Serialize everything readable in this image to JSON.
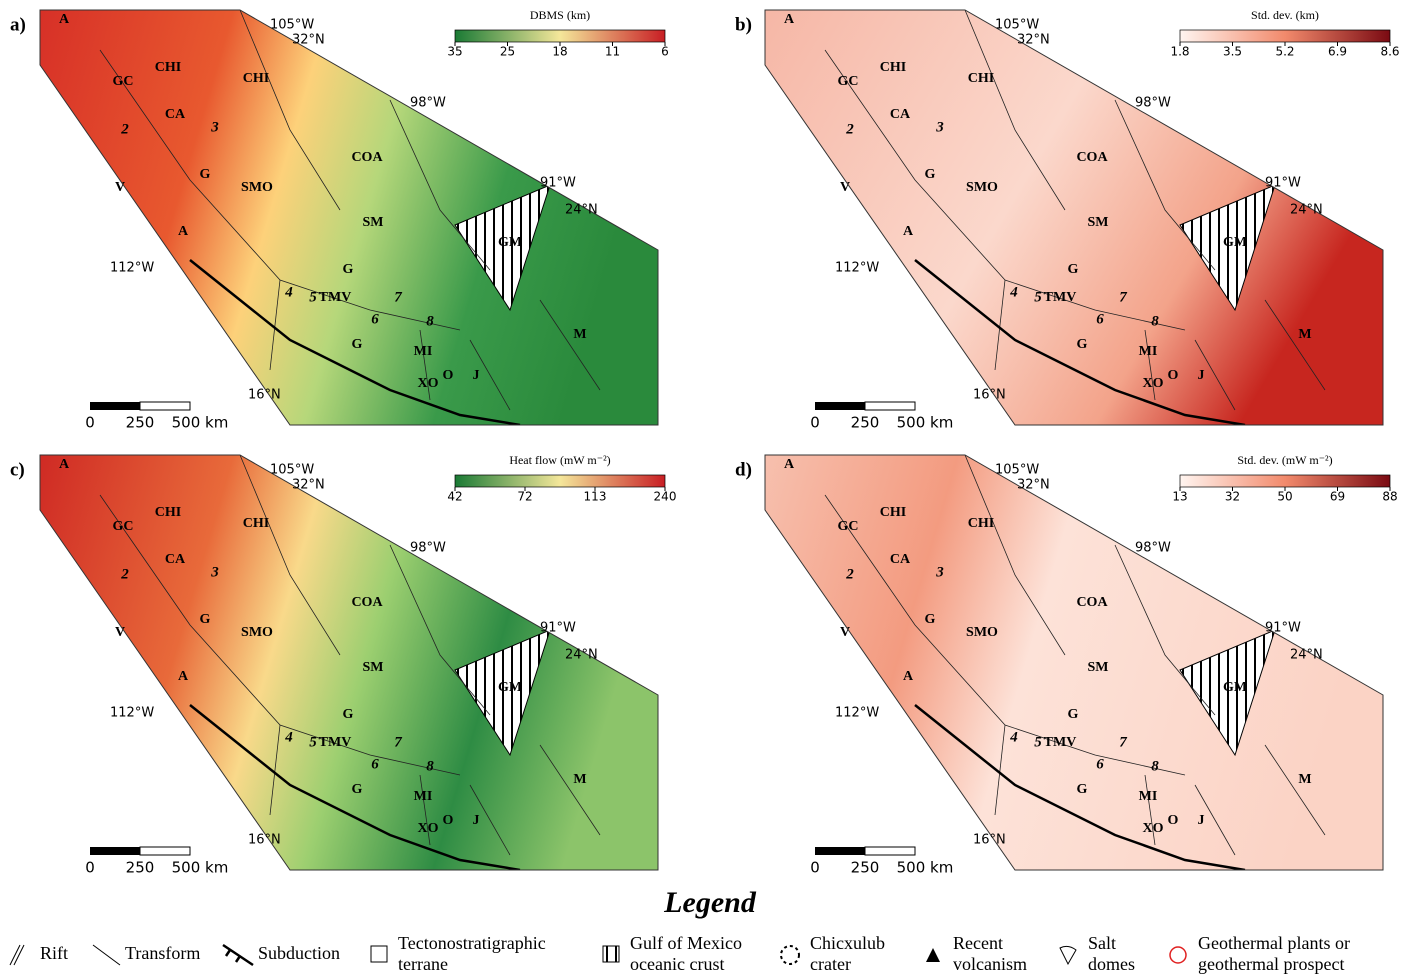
{
  "panels": [
    {
      "letter": "a)",
      "colorbar": {
        "title": "DBMS (km)",
        "ticks": [
          35,
          25,
          18,
          11,
          6
        ]
      }
    },
    {
      "letter": "b)",
      "colorbar": {
        "title": "Std. dev. (km)",
        "ticks": [
          1.8,
          3.5,
          5.2,
          6.9,
          8.6
        ]
      }
    },
    {
      "letter": "c)",
      "colorbar": {
        "title": "Heat flow (mW m⁻²)",
        "ticks": [
          42,
          72,
          113,
          240
        ]
      }
    },
    {
      "letter": "d)",
      "colorbar": {
        "title": "Std. dev. (mW m⁻²)",
        "ticks": [
          13,
          32,
          50,
          69,
          88
        ]
      }
    }
  ],
  "map_labels": [
    "A",
    "CHI",
    "CHI",
    "CA",
    "GC",
    "G",
    "SMO",
    "V",
    "A",
    "COA",
    "SM",
    "G",
    "GM",
    "TMV",
    "G",
    "MI",
    "O",
    "J",
    "XO",
    "M",
    "2",
    "3",
    "4",
    "5",
    "6",
    "7",
    "8"
  ],
  "coordinates": [
    "105°W",
    "32°N",
    "98°W",
    "91°W",
    "24°N",
    "112°W",
    "16°N"
  ],
  "scale_bar": [
    "0",
    "250",
    "500 km"
  ],
  "legend": {
    "title": "Legend",
    "items": [
      [
        "Rift"
      ],
      [
        "Transform"
      ],
      [
        "Subduction"
      ],
      [
        "Tectonostratigraphic",
        "terrane"
      ],
      [
        "Gulf of Mexico",
        "oceanic crust"
      ],
      [
        "Chicxulub",
        "crater"
      ],
      [
        "Recent",
        "volcanism"
      ],
      [
        "Salt",
        "domes"
      ],
      [
        "Geothermal plants or",
        "geothermal prospect"
      ]
    ]
  }
}
